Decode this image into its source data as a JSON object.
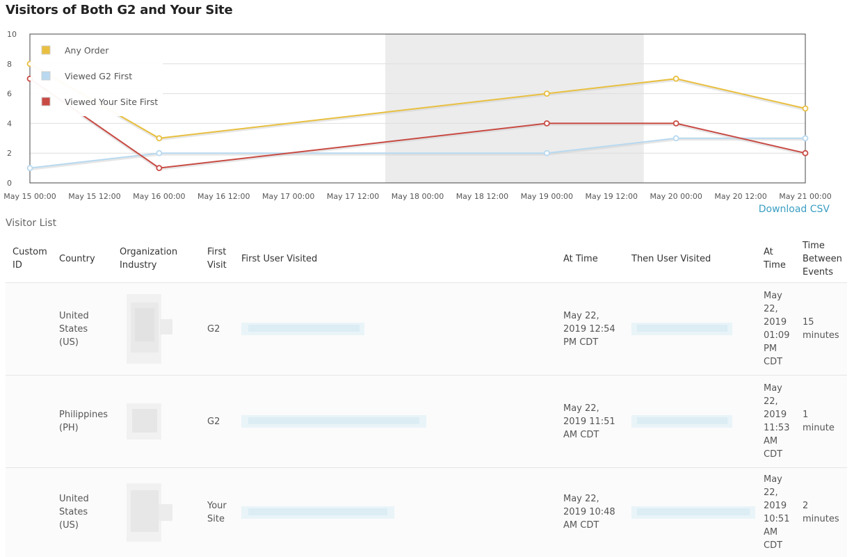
{
  "page": {
    "title": "Visitors of Both G2 and Your Site",
    "download_label": "Download CSV",
    "visitor_list_label": "Visitor List"
  },
  "chart_data": {
    "type": "line",
    "x": [
      "May 15 00:00",
      "May 16 00:00",
      "May 19 00:00",
      "May 20 00:00",
      "May 21 00:00"
    ],
    "x_values_hours": [
      0,
      24,
      96,
      120,
      144
    ],
    "x_ticks": [
      "May 15 00:00",
      "May 15 12:00",
      "May 16 00:00",
      "May 16 12:00",
      "May 17 00:00",
      "May 17 12:00",
      "May 18 00:00",
      "May 18 12:00",
      "May 19 00:00",
      "May 19 12:00",
      "May 20 00:00",
      "May 20 12:00",
      "May 21 00:00"
    ],
    "y_ticks": [
      "0",
      "2",
      "4",
      "6",
      "8",
      "10"
    ],
    "ylim": [
      0,
      10
    ],
    "highlight_range_hours": [
      66,
      114
    ],
    "series": [
      {
        "name": "Any Order",
        "color": "#e8bf3f",
        "values": [
          8,
          3,
          6,
          7,
          5
        ]
      },
      {
        "name": "Viewed G2 First",
        "color": "#b8d9f0",
        "values": [
          1,
          2,
          2,
          3,
          3
        ]
      },
      {
        "name": "Viewed Your Site First",
        "color": "#c84a43",
        "values": [
          7,
          1,
          4,
          4,
          2
        ]
      }
    ],
    "legend": "top-left",
    "grid": true
  },
  "table": {
    "headers": {
      "custom_id": "Custom ID",
      "country": "Country",
      "industry": "Organization Industry",
      "first_visit": "First Visit",
      "first_user_visited": "First User Visited",
      "at_time_1": "At Time",
      "then_user_visited": "Then User Visited",
      "at_time_2": "At Time",
      "time_between": "Time Between Events"
    },
    "rows": [
      {
        "custom_id": "",
        "country": "United States (US)",
        "first_visit": "G2",
        "at_time": "May 22, 2019 12:54 PM CDT",
        "then_at_time": "May 22, 2019 01:09 PM CDT",
        "time_between": "15 minutes"
      },
      {
        "custom_id": "",
        "country": "Philippines (PH)",
        "first_visit": "G2",
        "at_time": "May 22, 2019 11:51 AM CDT",
        "then_at_time": "May 22, 2019 11:53 AM CDT",
        "time_between": "1 minute"
      },
      {
        "custom_id": "",
        "country": "United States (US)",
        "first_visit": "Your Site",
        "at_time": "May 22, 2019 10:48 AM CDT",
        "then_at_time": "May 22, 2019 10:51 AM CDT",
        "time_between": "2 minutes"
      }
    ]
  }
}
